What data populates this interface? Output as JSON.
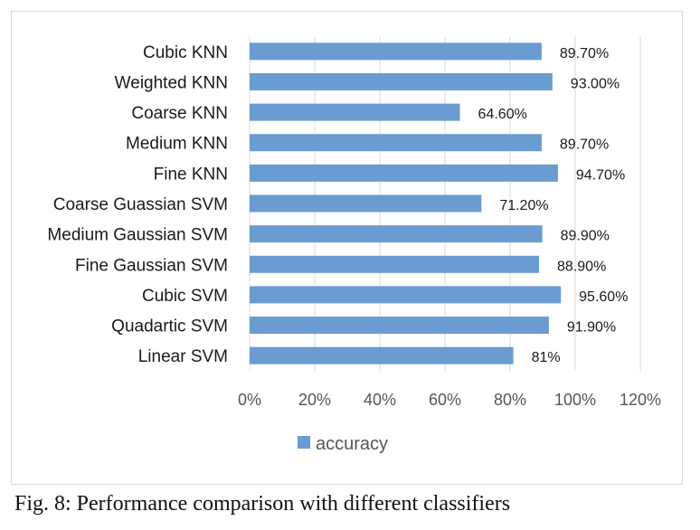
{
  "caption": "Fig. 8: Performance comparison with different classifiers",
  "chart_data": {
    "type": "bar",
    "orientation": "horizontal",
    "categories": [
      "Cubic KNN",
      "Weighted KNN",
      "Coarse KNN",
      "Medium KNN",
      "Fine KNN",
      "Coarse Guassian SVM",
      "Medium Gaussian SVM",
      "Fine Gaussian SVM",
      "Cubic SVM",
      "Quadartic SVM",
      "Linear SVM"
    ],
    "series": [
      {
        "name": "accuracy",
        "values": [
          89.7,
          93.0,
          64.6,
          89.7,
          94.7,
          71.2,
          89.9,
          88.9,
          95.6,
          91.9,
          81
        ],
        "labels": [
          "89.70%",
          "93.00%",
          "64.60%",
          "89.70%",
          "94.70%",
          "71.20%",
          "89.90%",
          "88.90%",
          "95.60%",
          "91.90%",
          "81%"
        ],
        "color": "#6a9bd1"
      }
    ],
    "x_ticks": [
      "0%",
      "20%",
      "40%",
      "60%",
      "80%",
      "100%",
      "120%"
    ],
    "xlim": [
      0,
      120
    ],
    "grid": "vertical",
    "legend_position": "bottom",
    "gridline_color": "#d9d9d9"
  }
}
